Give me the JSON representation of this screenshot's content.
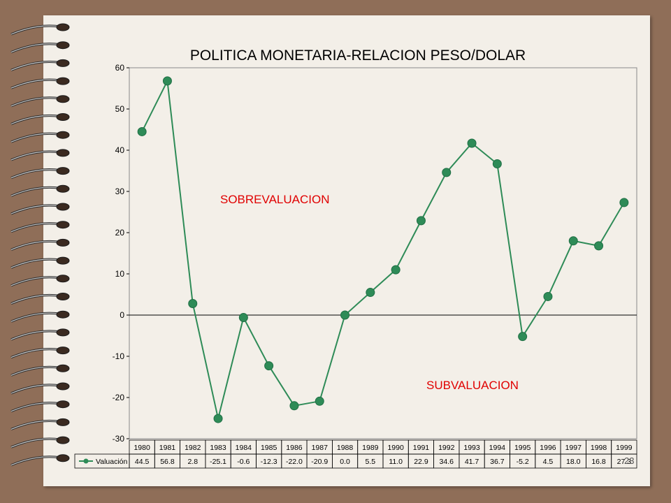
{
  "page_number": "23",
  "chart_data": {
    "type": "line",
    "title": "POLITICA MONETARIA-RELACION PESO/DOLAR",
    "categories": [
      "1980",
      "1981",
      "1982",
      "1983",
      "1984",
      "1985",
      "1986",
      "1987",
      "1988",
      "1989",
      "1990",
      "1991",
      "1992",
      "1993",
      "1994",
      "1995",
      "1996",
      "1997",
      "1998",
      "1999"
    ],
    "series": [
      {
        "name": "Valuación",
        "values": [
          44.5,
          56.8,
          2.8,
          -25.1,
          -0.6,
          -12.3,
          -22.0,
          -20.9,
          0.0,
          5.5,
          11.0,
          22.9,
          34.6,
          41.7,
          36.7,
          -5.2,
          4.5,
          18.0,
          16.8,
          27.3
        ],
        "value_labels": [
          "44.5",
          "56.8",
          "2.8",
          "-25.1",
          "-0.6",
          "-12.3",
          "-22.0",
          "-20.9",
          "0.0",
          "5.5",
          "11.0",
          "22.9",
          "34.6",
          "41.7",
          "36.7",
          "-5.2",
          "4.5",
          "18.0",
          "16.8",
          "27.3"
        ],
        "color": "#2e8b57"
      }
    ],
    "ylim": [
      -30,
      60
    ],
    "yticks": [
      "60",
      "50",
      "40",
      "30",
      "20",
      "10",
      "0",
      "-10",
      "-20",
      "-30"
    ],
    "ytick_values": [
      60,
      50,
      40,
      30,
      20,
      10,
      0,
      -10,
      -20,
      -30
    ],
    "annotations": [
      "SOBREVALUACION",
      "SUBVALUACION"
    ],
    "annotation_color": "#e00000",
    "grid": false,
    "legend": "data-table",
    "xlabel": "",
    "ylabel": ""
  }
}
